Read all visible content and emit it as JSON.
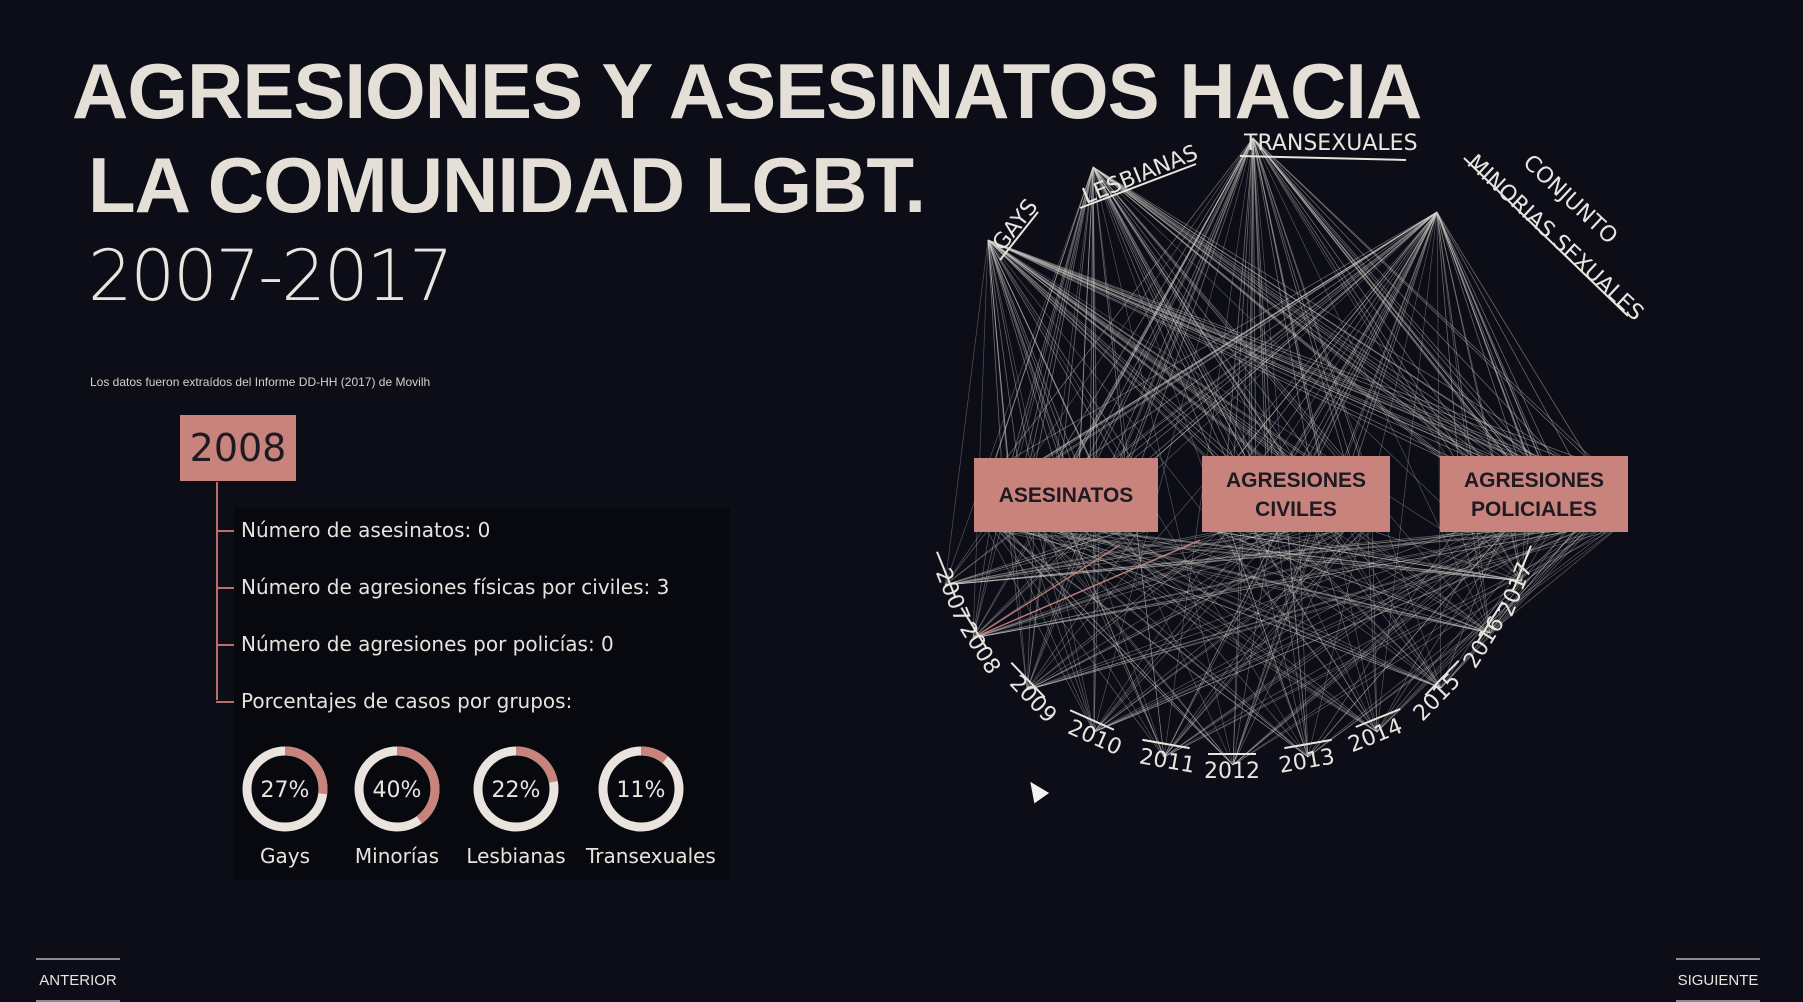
{
  "title": {
    "line1": "AGRESIONES Y  ASESINATOS HACIA",
    "line2": "LA COMUNIDAD LGBT.",
    "years": "2007-2017"
  },
  "source_note": "Los datos fueron extraídos del Informe DD-HH (2017) de Movilh",
  "selected_year": "2008",
  "stats": [
    "Número de asesinatos: 0",
    "Número de agresiones físicas por civiles: 3",
    "Número de agresiones por policías: 0",
    "Porcentajes de casos por grupos:"
  ],
  "donuts": [
    {
      "label": "Gays",
      "percent_text": "27%",
      "value": 27
    },
    {
      "label": "Minorías",
      "percent_text": "40%",
      "value": 40
    },
    {
      "label": "Lesbianas",
      "percent_text": "22%",
      "value": 22
    },
    {
      "label": "Transexuales",
      "percent_text": "11%",
      "value": 11
    }
  ],
  "network": {
    "groups": [
      "GAYS",
      "LESBIANAS",
      "TRANSEXUALES",
      "CONJUNTO",
      "MINORIAS SEXUALES"
    ],
    "categories": [
      {
        "line1": "ASESINATOS",
        "line2": ""
      },
      {
        "line1": "AGRESIONES",
        "line2": "CIVILES"
      },
      {
        "line1": "AGRESIONES",
        "line2": "POLICIALES"
      }
    ],
    "years": [
      "2007",
      "2008",
      "2009",
      "2010",
      "2011",
      "2012",
      "2013",
      "2014",
      "2015",
      "2016",
      "2017"
    ]
  },
  "nav": {
    "prev": "ANTERIOR",
    "next": "SIGUIENTE"
  },
  "colors": {
    "accent": "#c8837d",
    "background": "#0c0d17",
    "link": "#d8d4ce",
    "highlight_link": "#c8837d"
  }
}
